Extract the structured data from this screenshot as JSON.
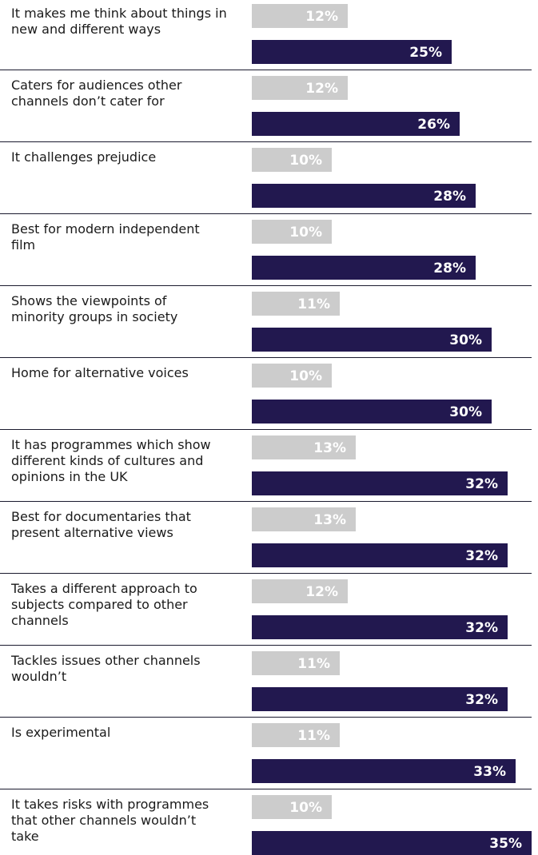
{
  "chart_data": {
    "type": "bar",
    "orientation": "horizontal",
    "grid": false,
    "legend": "none",
    "categories": [
      "It makes me think about things in new and different ways",
      "Caters for audiences other channels don’t cater for",
      "It challenges prejudice",
      "Best for modern independent film",
      "Shows the viewpoints of minority groups in society",
      "Home for alternative voices",
      "It has programmes which show different kinds of cultures and opinions in the UK",
      "Best for documentaries that present alternative views",
      "Takes a different approach to subjects compared to other channels",
      "Tackles issues other channels wouldn’t",
      "Is experimental",
      "It takes risks with programmes that other channels wouldn’t take"
    ],
    "label_lines": [
      [
        "It makes me think about things in",
        "new and different ways"
      ],
      [
        "Caters for audiences other",
        "channels don’t cater for"
      ],
      [
        "It challenges prejudice"
      ],
      [
        "Best for modern independent",
        "film"
      ],
      [
        "Shows the viewpoints of",
        "minority groups in society"
      ],
      [
        "Home for alternative voices"
      ],
      [
        "It has programmes which show",
        "different kinds of cultures and",
        "opinions in the UK"
      ],
      [
        "Best for documentaries that",
        "present alternative views"
      ],
      [
        "Takes a different approach to",
        "subjects compared to other",
        "channels"
      ],
      [
        "Tackles issues other channels",
        "wouldn’t"
      ],
      [
        "Is experimental"
      ],
      [
        "It takes risks with programmes",
        "that other channels wouldn’t",
        "take"
      ]
    ],
    "series": [
      {
        "values": [
          12,
          12,
          10,
          10,
          11,
          10,
          13,
          13,
          12,
          11,
          11,
          10
        ],
        "color": "#cccccc"
      },
      {
        "values": [
          25,
          26,
          28,
          28,
          30,
          30,
          32,
          32,
          32,
          32,
          33,
          35
        ],
        "color": "#22184f"
      }
    ],
    "value_suffix": "%",
    "xlim": [
      0,
      35
    ]
  }
}
